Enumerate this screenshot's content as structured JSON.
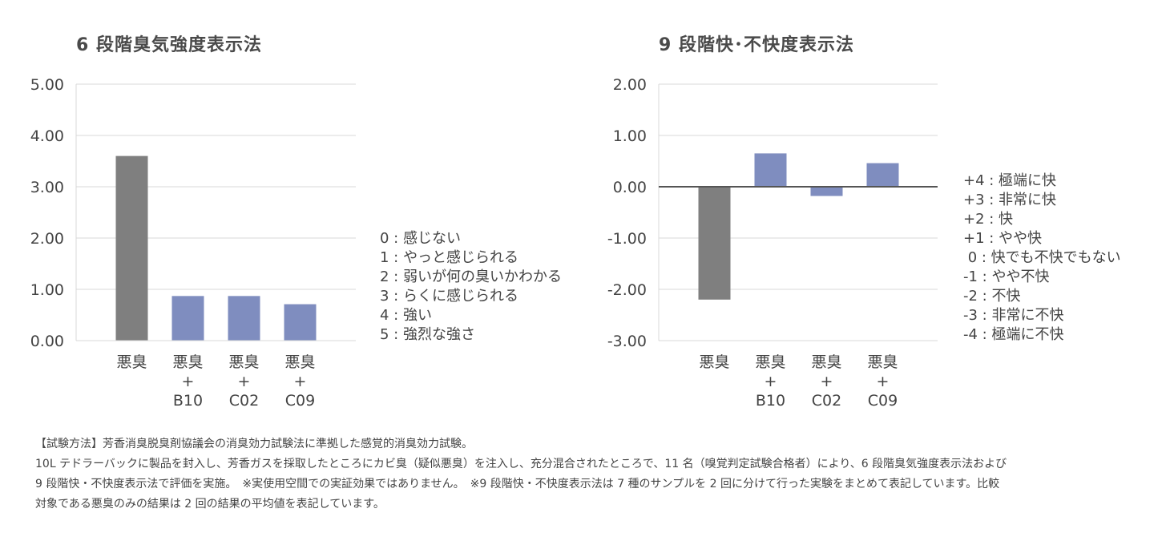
{
  "chart_data": [
    {
      "type": "bar",
      "title": "6 段階臭気強度表示法",
      "categories": [
        [
          "悪臭"
        ],
        [
          "悪臭",
          "+",
          "B10"
        ],
        [
          "悪臭",
          "+",
          "C02"
        ],
        [
          "悪臭",
          "+",
          "C09"
        ]
      ],
      "values": [
        3.6,
        0.87,
        0.87,
        0.71
      ],
      "colors": [
        "#7f7f7f",
        "#7f8dbf",
        "#7f8dbf",
        "#7f8dbf"
      ],
      "ylim": [
        0,
        5
      ],
      "yticks": [
        "5.00",
        "4.00",
        "3.00",
        "2.00",
        "1.00",
        "0.00"
      ],
      "grid": true,
      "legend_items": [
        "0 : 感じない",
        "1 : やっと感じられる",
        "2 : 弱いが何の臭いかわかる",
        "3 : らくに感じられる",
        "4 : 強い",
        "5 : 強烈な強さ"
      ]
    },
    {
      "type": "bar",
      "title": "9 段階快･不快度表示法",
      "categories": [
        [
          "悪臭"
        ],
        [
          "悪臭",
          "+",
          "B10"
        ],
        [
          "悪臭",
          "+",
          "C02"
        ],
        [
          "悪臭",
          "+",
          "C09"
        ]
      ],
      "values": [
        -2.2,
        0.65,
        -0.18,
        0.46
      ],
      "colors": [
        "#7f7f7f",
        "#7f8dbf",
        "#7f8dbf",
        "#7f8dbf"
      ],
      "ylim": [
        -3,
        2
      ],
      "yticks": [
        "2.00",
        "1.00",
        "0.00",
        "-1.00",
        "-2.00",
        "-3.00"
      ],
      "grid": true,
      "legend_items": [
        "+4 : 極端に快",
        "+3 : 非常に快",
        "+2 : 快",
        "+1 : やや快",
        " 0 : 快でも不快でもない",
        "-1 : やや不快",
        "-2 : 不快",
        "-3 : 非常に不快",
        "-4 : 極端に不快"
      ]
    }
  ],
  "footnote": [
    "【試験方法】芳香消臭脱臭剤協議会の消臭効力試験法に準拠した感覚的消臭効力試験。",
    "10L テドラーバックに製品を封入し、芳香ガスを採取したところにカビ臭（疑似悪臭）を注入し、充分混合されたところで、11 名（嗅覚判定試験合格者）により、6 段階臭気強度表示法および",
    "9 段階快・不快度表示法で評価を実施。　※実使用空間での実証効果ではありません。　※9 段階快・不快度表示法は 7 種のサンプルを 2 回に分けて行った実験をまとめて表記しています。比較",
    "対象である悪臭のみの結果は 2 回の結果の平均値を表記しています。"
  ]
}
